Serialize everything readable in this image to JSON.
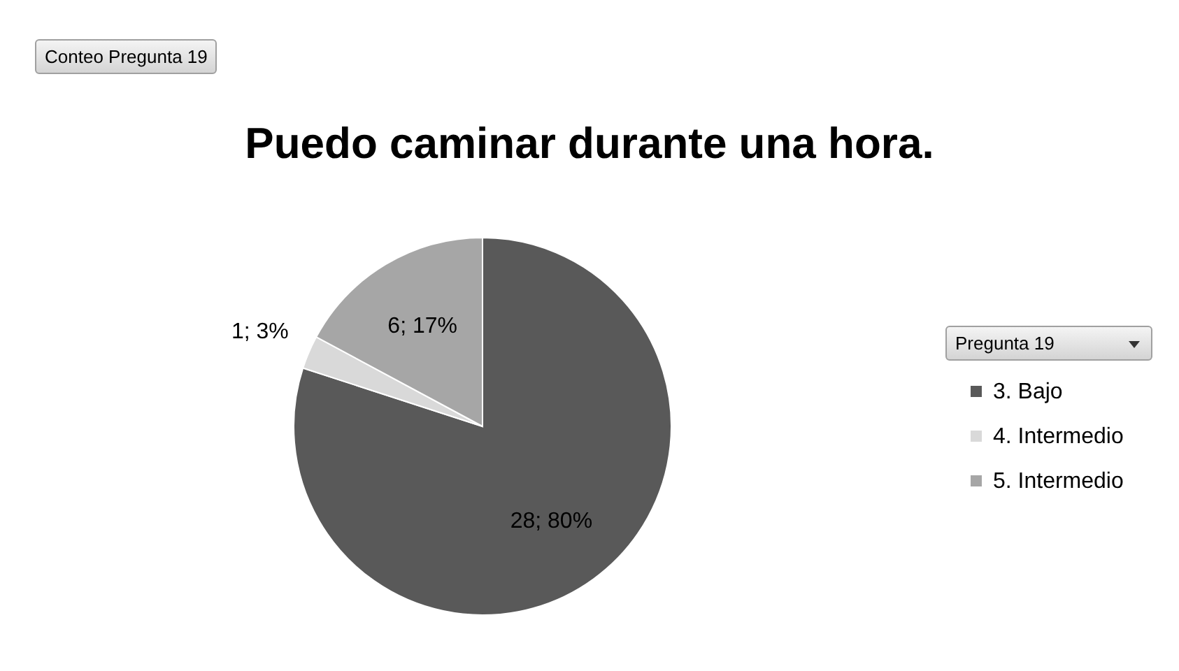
{
  "chart_data": {
    "type": "pie",
    "title": "Puedo caminar durante una hora.",
    "annotations": [
      "Conteo Pregunta 19"
    ],
    "legend_title": "Pregunta 19",
    "legend": "right",
    "categories": [
      "3. Bajo",
      "4. Intermedio",
      "5. Intermedio"
    ],
    "values": [
      28,
      1,
      6
    ],
    "colors": [
      "#595959",
      "#d9d9d9",
      "#a6a6a6"
    ],
    "value_labels": [
      "28; 80%",
      "1; 3%",
      "6; 17%"
    ]
  }
}
